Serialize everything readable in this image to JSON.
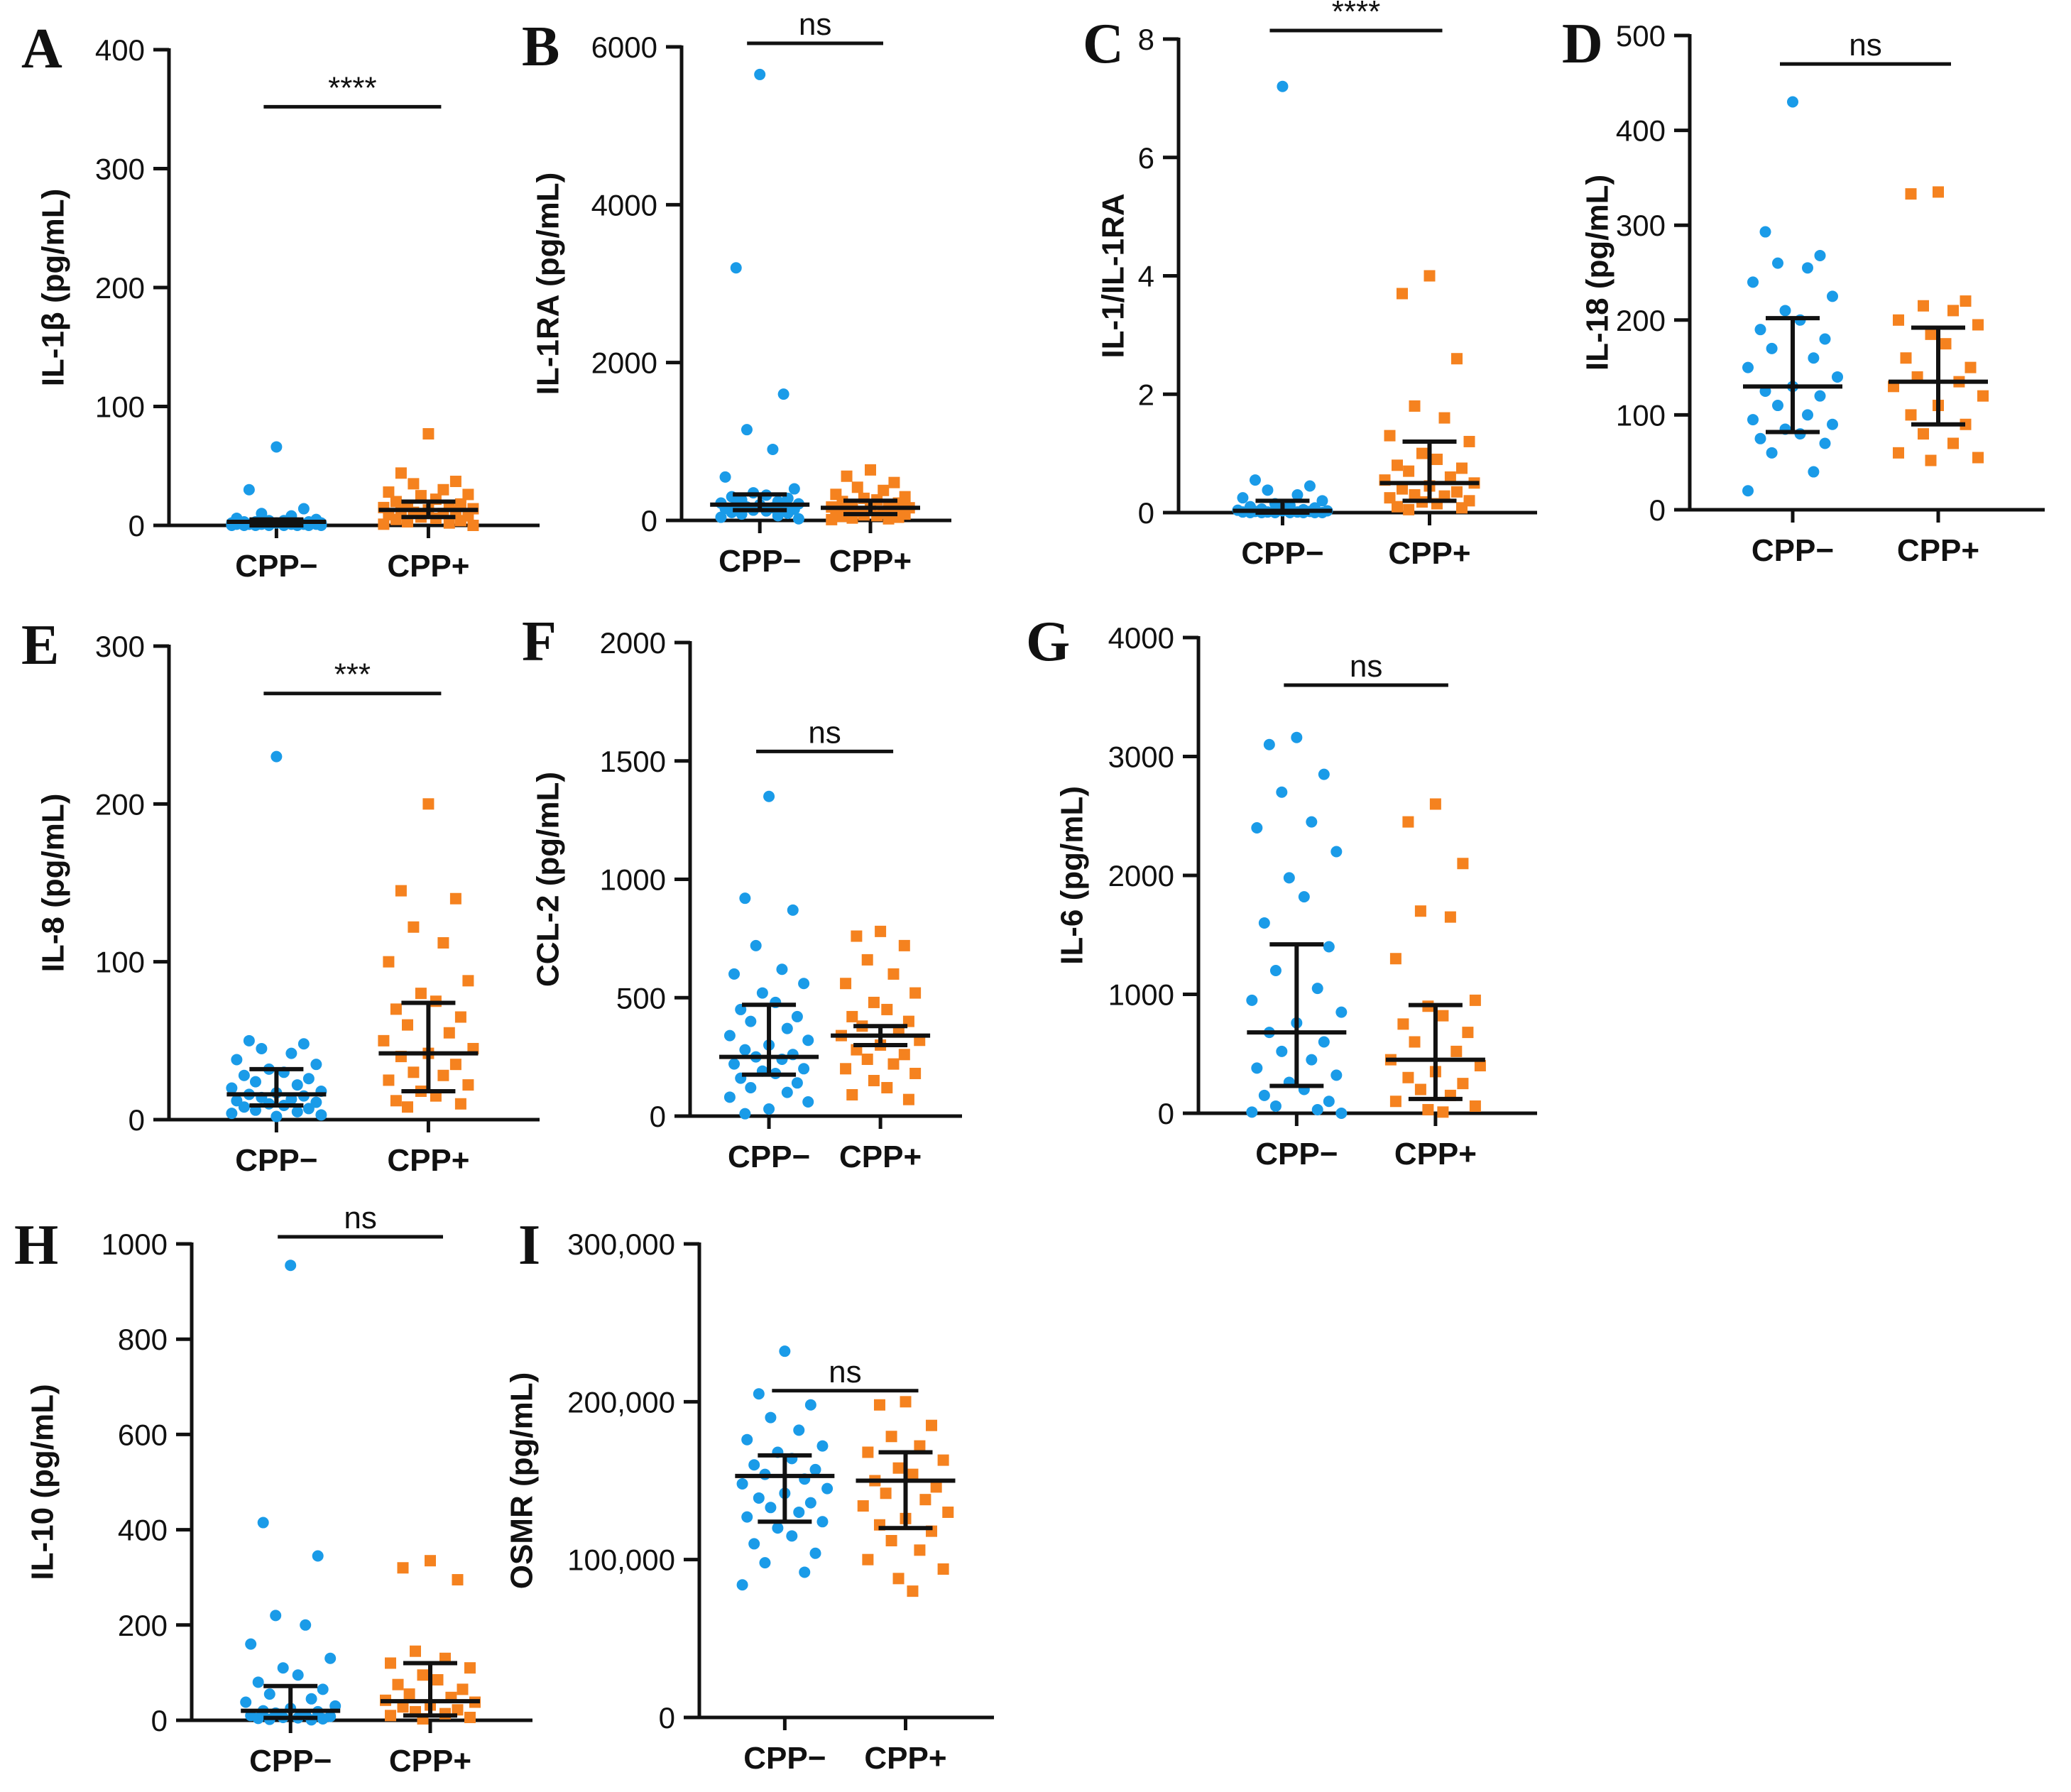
{
  "colors": {
    "cpp_neg": "#1a9be8",
    "cpp_pos": "#f5821f",
    "axis": "#111111"
  },
  "chart_data": [
    {
      "id": "A",
      "type": "scatter",
      "letter": "A",
      "ylabel": "IL-1β (pg/mL)",
      "categories": [
        "CPP−",
        "CPP+"
      ],
      "ylim": [
        0,
        400
      ],
      "yticks": [
        0,
        100,
        200,
        300,
        400
      ],
      "ytick_labels": [
        "0",
        "100",
        "200",
        "300",
        "400"
      ],
      "significance": "****",
      "series": [
        {
          "name": "CPP−",
          "marker": "circle",
          "median": 3,
          "err_low": 0,
          "err_high": 5,
          "values": [
            66,
            30,
            14,
            10,
            8,
            6,
            5,
            4,
            4,
            3,
            3,
            3,
            2,
            2,
            2,
            2,
            1,
            1,
            1,
            1,
            1,
            1,
            0,
            0,
            0,
            0,
            0,
            0,
            0,
            0
          ]
        },
        {
          "name": "CPP+",
          "marker": "square",
          "median": 13,
          "err_low": 7,
          "err_high": 20,
          "values": [
            77,
            44,
            37,
            35,
            30,
            28,
            26,
            25,
            22,
            20,
            18,
            17,
            16,
            15,
            14,
            13,
            12,
            12,
            11,
            10,
            9,
            8,
            7,
            6,
            5,
            4,
            3,
            2,
            1,
            0
          ]
        }
      ]
    },
    {
      "id": "B",
      "type": "scatter",
      "letter": "B",
      "ylabel": "IL-1RA (pg/mL)",
      "categories": [
        "CPP−",
        "CPP+"
      ],
      "ylim": [
        0,
        6000
      ],
      "yticks": [
        0,
        2000,
        4000,
        6000
      ],
      "ytick_labels": [
        "0",
        "2000",
        "4000",
        "6000"
      ],
      "significance": "ns",
      "series": [
        {
          "name": "CPP−",
          "marker": "circle",
          "median": 200,
          "err_low": 130,
          "err_high": 330,
          "values": [
            5650,
            3200,
            1600,
            1150,
            900,
            550,
            400,
            350,
            320,
            300,
            280,
            260,
            240,
            220,
            210,
            200,
            190,
            180,
            170,
            160,
            150,
            140,
            130,
            120,
            100,
            90,
            80,
            60,
            40,
            20
          ]
        },
        {
          "name": "CPP+",
          "marker": "square",
          "median": 160,
          "err_low": 80,
          "err_high": 250,
          "values": [
            640,
            560,
            480,
            420,
            380,
            330,
            300,
            280,
            260,
            240,
            220,
            200,
            180,
            170,
            160,
            150,
            140,
            120,
            110,
            100,
            90,
            80,
            70,
            60,
            50,
            40,
            30,
            20,
            10
          ]
        }
      ]
    },
    {
      "id": "C",
      "type": "scatter",
      "letter": "C",
      "ylabel": "IL-1/IL-1RA",
      "categories": [
        "CPP−",
        "CPP+"
      ],
      "ylim": [
        0,
        8
      ],
      "yticks": [
        0,
        2,
        4,
        6,
        8
      ],
      "ytick_labels": [
        "0",
        "2",
        "4",
        "6",
        "8"
      ],
      "significance": "****",
      "series": [
        {
          "name": "CPP−",
          "marker": "circle",
          "median": 0.03,
          "err_low": 0.0,
          "err_high": 0.2,
          "values": [
            7.2,
            0.55,
            0.45,
            0.38,
            0.3,
            0.25,
            0.2,
            0.15,
            0.12,
            0.1,
            0.08,
            0.06,
            0.05,
            0.04,
            0.03,
            0.03,
            0.02,
            0.02,
            0.01,
            0.01,
            0.01,
            0.0,
            0.0,
            0.0,
            0.0,
            0.0,
            0.0,
            0.0
          ]
        },
        {
          "name": "CPP+",
          "marker": "square",
          "median": 0.5,
          "err_low": 0.2,
          "err_high": 1.2,
          "values": [
            4.0,
            3.7,
            2.6,
            1.8,
            1.6,
            1.3,
            1.2,
            1.0,
            0.9,
            0.8,
            0.75,
            0.7,
            0.6,
            0.55,
            0.5,
            0.45,
            0.4,
            0.35,
            0.3,
            0.28,
            0.25,
            0.2,
            0.18,
            0.15,
            0.1,
            0.08,
            0.05
          ]
        }
      ]
    },
    {
      "id": "D",
      "type": "scatter",
      "letter": "D",
      "ylabel": "IL-18 (pg/mL)",
      "categories": [
        "CPP−",
        "CPP+"
      ],
      "ylim": [
        0,
        500
      ],
      "yticks": [
        0,
        100,
        200,
        300,
        400,
        500
      ],
      "ytick_labels": [
        "0",
        "100",
        "200",
        "300",
        "400",
        "500"
      ],
      "significance": "ns",
      "series": [
        {
          "name": "CPP−",
          "marker": "circle",
          "median": 130,
          "err_low": 82,
          "err_high": 202,
          "values": [
            430,
            293,
            268,
            260,
            255,
            240,
            225,
            210,
            200,
            190,
            180,
            170,
            160,
            150,
            140,
            130,
            125,
            120,
            110,
            100,
            95,
            90,
            85,
            80,
            75,
            70,
            60,
            40,
            20
          ]
        },
        {
          "name": "CPP+",
          "marker": "square",
          "median": 135,
          "err_low": 90,
          "err_high": 192,
          "values": [
            335,
            333,
            220,
            215,
            210,
            200,
            195,
            185,
            175,
            160,
            150,
            140,
            135,
            130,
            120,
            110,
            100,
            90,
            80,
            70,
            60,
            55,
            52
          ]
        }
      ]
    },
    {
      "id": "E",
      "type": "scatter",
      "letter": "E",
      "ylabel": "IL-8 (pg/mL)",
      "categories": [
        "CPP−",
        "CPP+"
      ],
      "ylim": [
        0,
        300
      ],
      "yticks": [
        0,
        100,
        200,
        300
      ],
      "ytick_labels": [
        "0",
        "100",
        "200",
        "300"
      ],
      "significance": "***",
      "series": [
        {
          "name": "CPP−",
          "marker": "circle",
          "median": 16,
          "err_low": 9,
          "err_high": 32,
          "values": [
            230,
            50,
            48,
            45,
            42,
            38,
            35,
            32,
            30,
            28,
            26,
            24,
            22,
            20,
            18,
            17,
            16,
            15,
            14,
            13,
            12,
            11,
            10,
            9,
            8,
            7,
            6,
            5,
            4,
            3,
            2
          ]
        },
        {
          "name": "CPP+",
          "marker": "square",
          "median": 42,
          "err_low": 18,
          "err_high": 74,
          "values": [
            200,
            145,
            140,
            122,
            112,
            100,
            88,
            80,
            75,
            70,
            65,
            60,
            55,
            50,
            45,
            42,
            40,
            35,
            30,
            28,
            25,
            22,
            18,
            15,
            12,
            10,
            8
          ]
        }
      ]
    },
    {
      "id": "F",
      "type": "scatter",
      "letter": "F",
      "ylabel": "CCL-2 (pg/mL)",
      "categories": [
        "CPP−",
        "CPP+"
      ],
      "ylim": [
        0,
        2000
      ],
      "yticks": [
        0,
        500,
        1000,
        1500,
        2000
      ],
      "ytick_labels": [
        "0",
        "500",
        "1000",
        "1500",
        "2000"
      ],
      "significance": "ns",
      "series": [
        {
          "name": "CPP−",
          "marker": "circle",
          "median": 250,
          "err_low": 175,
          "err_high": 470,
          "values": [
            1350,
            920,
            870,
            720,
            620,
            600,
            560,
            520,
            480,
            450,
            420,
            400,
            370,
            340,
            320,
            300,
            280,
            260,
            250,
            240,
            220,
            200,
            190,
            180,
            160,
            140,
            120,
            100,
            80,
            60,
            30,
            10
          ]
        },
        {
          "name": "CPP+",
          "marker": "square",
          "median": 340,
          "err_low": 300,
          "err_high": 380,
          "values": [
            780,
            760,
            720,
            660,
            600,
            560,
            520,
            480,
            450,
            420,
            400,
            380,
            360,
            340,
            320,
            300,
            280,
            260,
            240,
            220,
            200,
            180,
            150,
            120,
            90,
            70
          ]
        }
      ]
    },
    {
      "id": "G",
      "type": "scatter",
      "letter": "G",
      "ylabel": "IL-6 (pg/mL)",
      "categories": [
        "CPP−",
        "CPP+"
      ],
      "ylim": [
        0,
        4000
      ],
      "yticks": [
        0,
        1000,
        2000,
        3000,
        4000
      ],
      "ytick_labels": [
        "0",
        "1000",
        "2000",
        "3000",
        "4000"
      ],
      "significance": "ns",
      "series": [
        {
          "name": "CPP−",
          "marker": "circle",
          "median": 680,
          "err_low": 230,
          "err_high": 1420,
          "values": [
            3160,
            3100,
            2850,
            2700,
            2450,
            2400,
            2200,
            1980,
            1820,
            1600,
            1400,
            1200,
            1050,
            950,
            850,
            760,
            680,
            600,
            520,
            450,
            380,
            320,
            260,
            200,
            150,
            100,
            60,
            30,
            10,
            0
          ]
        },
        {
          "name": "CPP+",
          "marker": "square",
          "median": 450,
          "err_low": 120,
          "err_high": 910,
          "values": [
            2600,
            2450,
            2100,
            1700,
            1650,
            1300,
            950,
            900,
            820,
            750,
            680,
            600,
            520,
            450,
            400,
            350,
            300,
            250,
            200,
            150,
            100,
            60,
            30,
            10
          ]
        }
      ]
    },
    {
      "id": "H",
      "type": "scatter",
      "letter": "H",
      "ylabel": "IL-10 (pg/mL)",
      "categories": [
        "CPP−",
        "CPP+"
      ],
      "ylim": [
        0,
        1000
      ],
      "yticks": [
        0,
        200,
        400,
        600,
        800,
        1000
      ],
      "ytick_labels": [
        "0",
        "200",
        "400",
        "600",
        "800",
        "1000"
      ],
      "significance": "ns",
      "series": [
        {
          "name": "CPP−",
          "marker": "circle",
          "median": 20,
          "err_low": 5,
          "err_high": 72,
          "values": [
            955,
            415,
            345,
            220,
            200,
            160,
            130,
            110,
            95,
            80,
            65,
            55,
            45,
            38,
            30,
            25,
            20,
            18,
            15,
            12,
            10,
            8,
            6,
            5,
            4,
            3,
            2,
            1
          ]
        },
        {
          "name": "CPP+",
          "marker": "square",
          "median": 40,
          "err_low": 10,
          "err_high": 120,
          "values": [
            335,
            320,
            295,
            145,
            130,
            120,
            110,
            95,
            85,
            75,
            65,
            55,
            48,
            42,
            38,
            32,
            28,
            22,
            18,
            14,
            10,
            6,
            3
          ]
        }
      ]
    },
    {
      "id": "I",
      "type": "scatter",
      "letter": "I",
      "ylabel": "OSMR (pg/mL)",
      "categories": [
        "CPP−",
        "CPP+"
      ],
      "ylim": [
        0,
        300000
      ],
      "yticks": [
        0,
        100000,
        200000,
        300000
      ],
      "ytick_labels": [
        "0",
        "100,000",
        "200,000",
        "300,000"
      ],
      "significance": "ns",
      "series": [
        {
          "name": "CPP−",
          "marker": "circle",
          "median": 153000,
          "err_low": 124000,
          "err_high": 166000,
          "values": [
            232000,
            205000,
            198000,
            190000,
            182000,
            176000,
            172000,
            168000,
            164000,
            160000,
            157000,
            154000,
            151000,
            148000,
            145000,
            142000,
            139000,
            136000,
            133000,
            130000,
            127000,
            124000,
            120000,
            115000,
            110000,
            104000,
            98000,
            92000,
            84000
          ]
        },
        {
          "name": "CPP+",
          "marker": "square",
          "median": 150000,
          "err_low": 120000,
          "err_high": 168000,
          "values": [
            200000,
            198000,
            185000,
            178000,
            172000,
            168000,
            163000,
            158000,
            154000,
            150000,
            146000,
            142000,
            138000,
            134000,
            130000,
            126000,
            122000,
            118000,
            112000,
            106000,
            100000,
            94000,
            88000,
            80000
          ]
        }
      ]
    }
  ]
}
